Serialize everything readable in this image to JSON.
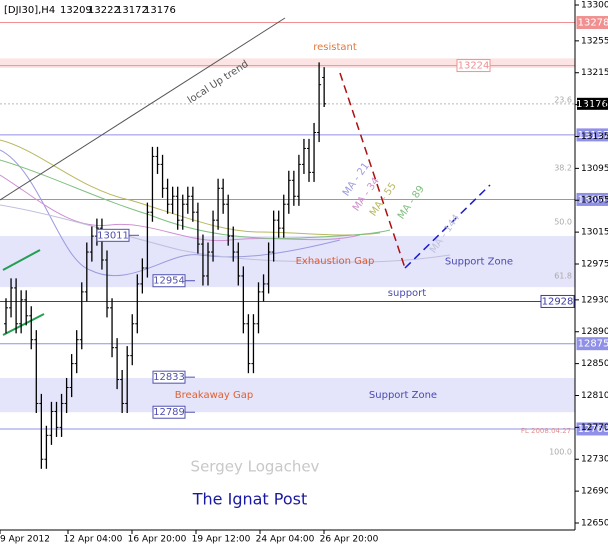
{
  "chart_data": {
    "type": "ohlc",
    "header": "[DJI30],H4",
    "header_ohlc": [
      13209,
      13222,
      13172,
      13176
    ],
    "ylim": [
      12650,
      13300
    ],
    "yticks": [
      13300,
      13255,
      13215,
      13175,
      13135,
      13095,
      13055,
      13015,
      12975,
      12930,
      12890,
      12850,
      12810,
      12770,
      12730,
      12690,
      12650
    ],
    "x_labels": [
      "9 Apr 2012",
      "12 Apr 04:00",
      "16 Apr 20:00",
      "19 Apr 12:00",
      "24 Apr 04:00",
      "26 Apr 20:00"
    ],
    "color": "#000000",
    "open": [
      12900,
      12920,
      12945,
      12900,
      12930,
      12910,
      12880,
      12800,
      12730,
      12760,
      12790,
      12770,
      12800,
      12820,
      12850,
      12880,
      12940,
      12990,
      13010,
      13020,
      12980,
      12920,
      12870,
      12830,
      12800,
      12860,
      12900,
      12950,
      12970,
      13040,
      13110,
      13100,
      13070,
      13050,
      13060,
      13030,
      13050,
      13060,
      13040,
      13000,
      12960,
      12990,
      13030,
      13070,
      13050,
      13010,
      12990,
      12960,
      12900,
      12850,
      12900,
      12940,
      12950,
      12990,
      13030,
      13020,
      13050,
      13080,
      13060,
      13100,
      13120,
      13090,
      13140,
      13209
    ],
    "high": [
      12932,
      12957,
      12957,
      12942,
      12942,
      12922,
      12892,
      12812,
      12772,
      12802,
      12802,
      12812,
      12832,
      12862,
      12892,
      12952,
      13002,
      13022,
      13032,
      13032,
      12992,
      12932,
      12882,
      12842,
      12872,
      12912,
      12962,
      12982,
      13052,
      13122,
      13122,
      13112,
      13082,
      13072,
      13072,
      13062,
      13072,
      13072,
      13052,
      13012,
      13002,
      13042,
      13082,
      13082,
      13062,
      13022,
      13002,
      12972,
      12912,
      12912,
      12952,
      12962,
      13002,
      13042,
      13042,
      13062,
      13092,
      13092,
      13112,
      13132,
      13132,
      13152,
      13228,
      13222
    ],
    "low": [
      12888,
      12908,
      12888,
      12888,
      12898,
      12868,
      12788,
      12718,
      12718,
      12748,
      12758,
      12758,
      12788,
      12808,
      12838,
      12868,
      12928,
      12978,
      12998,
      12968,
      12908,
      12858,
      12818,
      12788,
      12788,
      12848,
      12888,
      12938,
      12958,
      13028,
      13088,
      13058,
      13038,
      13038,
      13018,
      13018,
      13038,
      13028,
      12988,
      12948,
      12948,
      12978,
      13018,
      13038,
      12998,
      12978,
      12948,
      12888,
      12838,
      12838,
      12888,
      12928,
      12938,
      12978,
      13008,
      13008,
      13038,
      13048,
      13048,
      13088,
      13078,
      13078,
      13128,
      13172
    ],
    "close": [
      12920,
      12945,
      12900,
      12930,
      12910,
      12880,
      12800,
      12730,
      12760,
      12790,
      12770,
      12800,
      12820,
      12850,
      12880,
      12940,
      12990,
      13010,
      13020,
      12980,
      12920,
      12870,
      12830,
      12800,
      12860,
      12900,
      12950,
      12970,
      13040,
      13110,
      13100,
      13070,
      13050,
      13060,
      13030,
      13050,
      13060,
      13040,
      13000,
      12960,
      12990,
      13030,
      13070,
      13050,
      13010,
      12990,
      12960,
      12900,
      12850,
      12900,
      12940,
      12950,
      12990,
      13030,
      13020,
      13050,
      13080,
      13060,
      13100,
      13120,
      13090,
      13140,
      13200,
      13176
    ],
    "price_lines": [
      {
        "value": 13278,
        "color": "#f09090"
      },
      {
        "value": 13224,
        "color": "#f09090"
      },
      {
        "value": 13137,
        "color": "#9090e8"
      },
      {
        "value": 13056,
        "color": "#9090e8"
      },
      {
        "value": 12928,
        "color": "#3a3aa0"
      },
      {
        "value": 12875,
        "color": "#9090e8"
      },
      {
        "value": 12768,
        "color": "#9090e8"
      }
    ],
    "zones": [
      {
        "name": "Support Zone",
        "from": 12946,
        "to": 13010,
        "color": "#e4e4fa"
      },
      {
        "name": "Support Zone",
        "from": 12789,
        "to": 12832,
        "color": "#e4e4fa"
      },
      {
        "from": 13221,
        "to": 13233,
        "color": "#fde4e4"
      }
    ],
    "gap_levels": [
      13011,
      12954,
      12833,
      12789
    ],
    "fib_labels": [
      "23.6",
      "38.2",
      "50.0",
      "61.8",
      "100.0"
    ],
    "fib_note": "FL 2008.04.27",
    "annotations": {
      "resistant": "resistant",
      "trend": "local Up trend",
      "exhaustion": "Exhaustion Gap",
      "support": "support",
      "breakaway": "Breakaway Gap",
      "author": "Sergey Logachev",
      "brand": "The Ignat Post"
    },
    "ma_labels": [
      "MA - 21",
      "MA - 34",
      "MA - 55",
      "MA - 89",
      "MA - 144"
    ]
  }
}
